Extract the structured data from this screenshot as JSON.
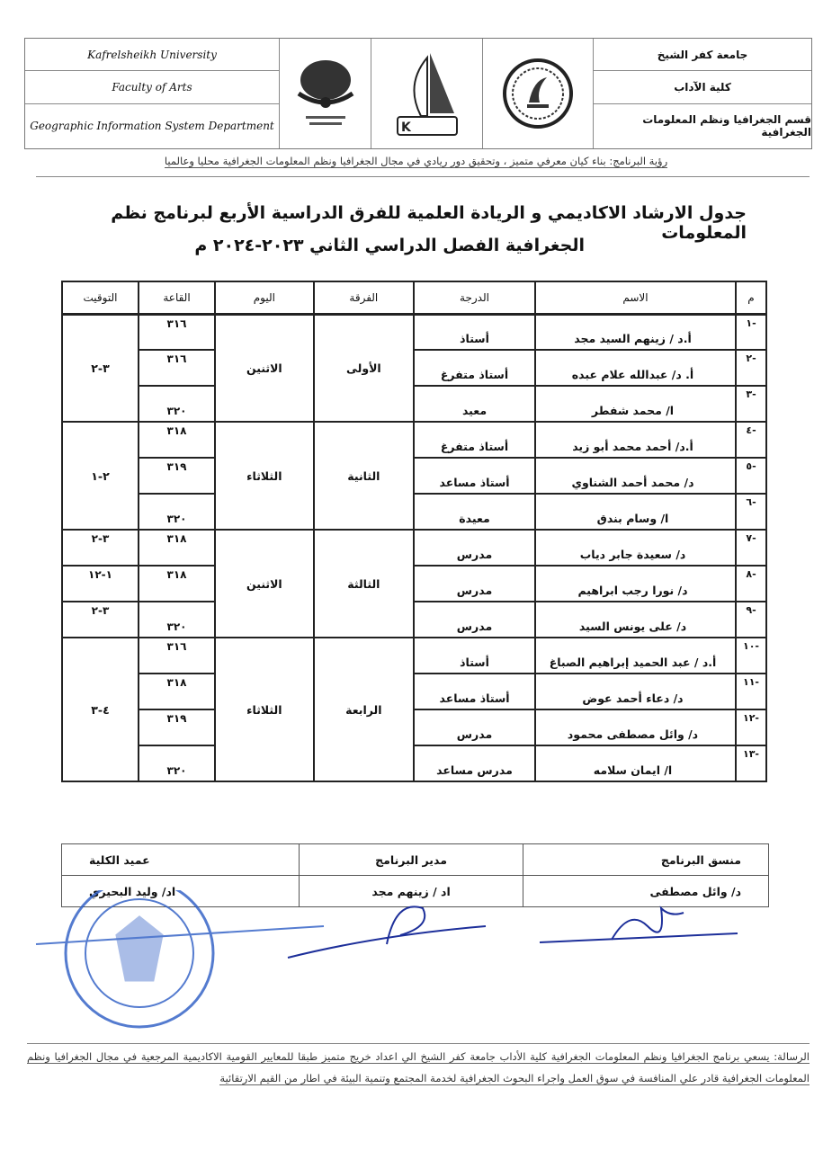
{
  "header": {
    "en": [
      "Kafrelsheikh University",
      "Faculty of Arts",
      "Geographic Information  System Department"
    ],
    "ar": [
      "جامعة كفر الشيخ",
      "كلية الآداب",
      "قسم الجغرافيا ونظم المعلومات الجغرافية"
    ],
    "logos": [
      "department-logo",
      "university-logo",
      "faculty-logo"
    ]
  },
  "vision": "رؤية البرنامج: بناء كيان معرفي متميز ، وتحقيق دور ريادي في مجال الجغرافيا ونظم المعلومات الجغرافية محليا وعالميا",
  "title_line1": "جدول الارشاد الاكاديمي و الريادة العلمية للفرق الدراسية الأربع لبرنامج نظم المعلومات",
  "title_line2": "الجغرافية الفصل الدراسي الثاني ٢٠٢٣-٢٠٢٤ م",
  "table": {
    "headers": [
      "م",
      "الاسم",
      "الدرجة",
      "الفرقة",
      "اليوم",
      "القاعة",
      "التوقيت"
    ],
    "rows": [
      {
        "num": "-١",
        "name": "أ.د /  زينهم السيد مجد",
        "degree": "أستاذ",
        "room": "٣١٦"
      },
      {
        "num": "-٢",
        "name": "أ. د/  عبدالله علام عبده",
        "degree": "أستاذ متفرغ",
        "room": "٣١٦"
      },
      {
        "num": "-٣",
        "name": "ا/ محمد شفطر",
        "degree": "معيد",
        "room": "٣٢٠"
      },
      {
        "num": "-٤",
        "name": "أ.د/ أحمد محمد أبو زيد",
        "degree": "أستاذ متفرغ",
        "room": "٣١٨"
      },
      {
        "num": "-٥",
        "name": "د/ محمد أحمد الشناوي",
        "degree": "أستاذ مساعد",
        "room": "٣١٩"
      },
      {
        "num": "-٦",
        "name": "ا/ وسام بندق",
        "degree": "معيدة",
        "room": "٣٢٠"
      },
      {
        "num": "-٧",
        "name": "د/ سعيدة جابر دياب",
        "degree": "مدرس",
        "room": "٣١٨"
      },
      {
        "num": "-٨",
        "name": "د/ نورا رجب ابراهيم",
        "degree": "مدرس",
        "room": "٣١٨"
      },
      {
        "num": "-٩",
        "name": "د/ على يونس السيد",
        "degree": "مدرس",
        "room": "٣٢٠"
      },
      {
        "num": "-١٠",
        "name": "أ.د / عبد الحميد إبراهيم الصباغ",
        "degree": "أستاذ",
        "room": "٣١٦"
      },
      {
        "num": "-١١",
        "name": "د/ دعاء أحمد عوض",
        "degree": "أستاذ مساعد",
        "room": "٣١٨"
      },
      {
        "num": "-١٢",
        "name": "د/ وائل مصطفى محمود",
        "degree": "مدرس",
        "room": "٣١٩"
      },
      {
        "num": "-١٣",
        "name": "ا/ ايمان سلامه",
        "degree": "مدرس مساعد",
        "room": "٣٢٠"
      }
    ],
    "groups": [
      {
        "level": "الأولى",
        "day": "الاثنين"
      },
      {
        "level": "الثانية",
        "day": "الثلاثاء"
      },
      {
        "level": "الثالثة",
        "day": "الاثنين"
      },
      {
        "level": "الرابعة",
        "day": "الثلاثاء"
      }
    ],
    "times": [
      "٣-٢",
      "٢-١",
      "٣-٢",
      "١-١٢",
      "٣-٢",
      "٤-٣"
    ]
  },
  "signatures": {
    "roles": [
      "منسق البرنامج",
      "مدير البرنامج",
      "عميد الكلية"
    ],
    "names": [
      "د/  وائل مصطفى",
      "اد / زينهم مجد",
      "اد/ وليد البحيري"
    ],
    "stamp": "جامعة كفر الشيخ - كلية الآداب"
  },
  "mission": "الرسالة: يسعي برنامج الجغرافيا ونظم المعلومات الجغرافية كلية الأداب جامعة كفر الشيخ الي اعداد خريج متميز طبقا للمعايير القومية الاكاديمية المرجعية في مجال الجغرافيا ونظم المعلومات الجغرافية  قادر علي المنافسة في سوق العمل واجراء البحوث الجغرافية لخدمة المجتمع وتنمية البيئة في اطار من القيم الارتقائية",
  "colors": {
    "ink": "#111111",
    "stamp": "#2a5bc4",
    "signature": "#1d2f9a"
  }
}
